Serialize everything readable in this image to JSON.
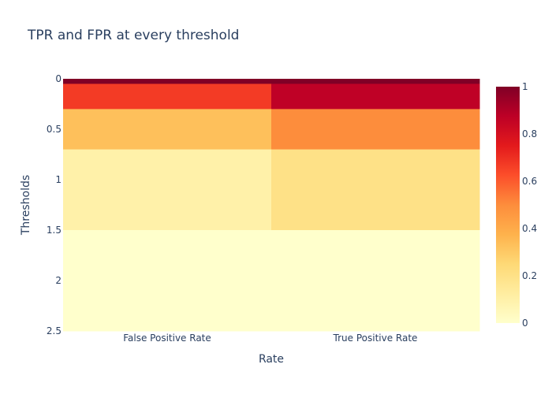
{
  "chart_data": {
    "type": "heatmap",
    "title": "TPR and FPR at every threshold",
    "xlabel": "Rate",
    "ylabel": "Thresholds",
    "categories": [
      "False Positive Rate",
      "True Positive Rate"
    ],
    "y_ticks": [
      0,
      0.5,
      1,
      1.5,
      2,
      2.5
    ],
    "ylim": [
      2.5,
      0
    ],
    "colorscale": "YlOrRd",
    "zlim": [
      0,
      1
    ],
    "colorbar_ticks": [
      0,
      0.2,
      0.4,
      0.6,
      0.8,
      1
    ],
    "rows": [
      {
        "threshold_from": 0,
        "threshold_to": 0.05,
        "values": [
          1.0,
          1.0
        ]
      },
      {
        "threshold_from": 0.05,
        "threshold_to": 0.3,
        "values": [
          0.67,
          0.87
        ]
      },
      {
        "threshold_from": 0.3,
        "threshold_to": 0.7,
        "values": [
          0.33,
          0.5
        ]
      },
      {
        "threshold_from": 0.7,
        "threshold_to": 1.5,
        "values": [
          0.1,
          0.2
        ]
      },
      {
        "threshold_from": 1.5,
        "threshold_to": 2.5,
        "values": [
          0.0,
          0.0
        ]
      }
    ]
  }
}
